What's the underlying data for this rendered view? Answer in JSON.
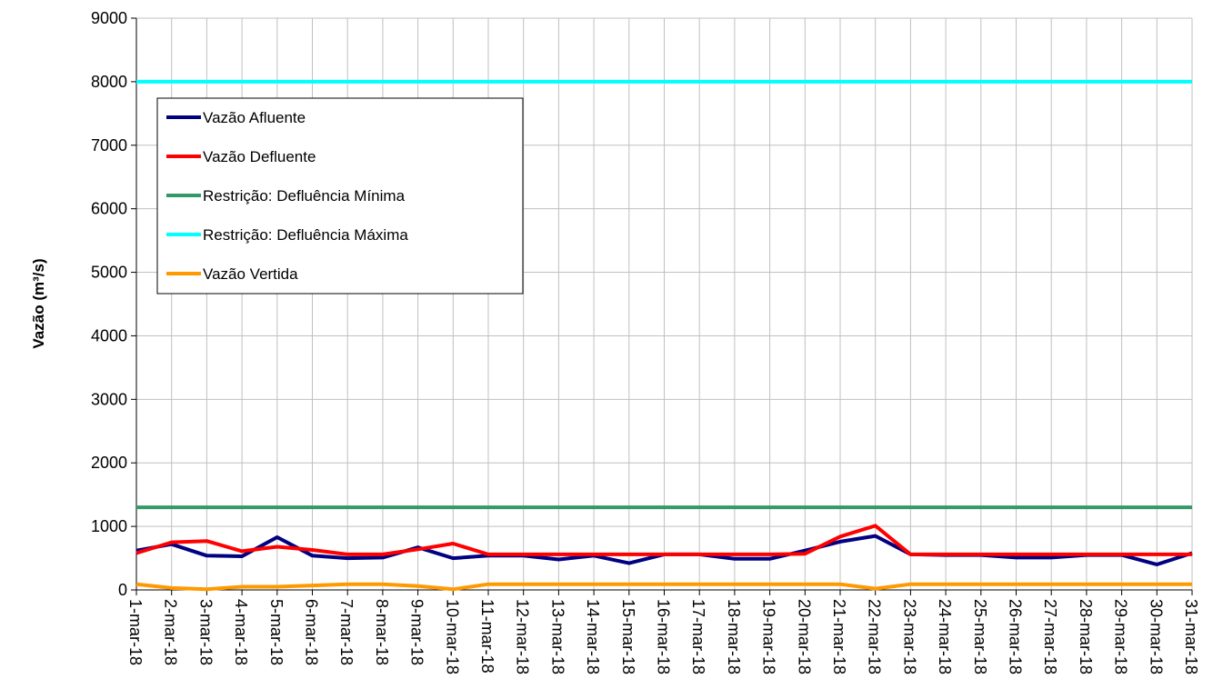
{
  "chart_data": {
    "type": "line",
    "title": "",
    "xlabel": "",
    "ylabel": "Vazão (m³/s)",
    "ylim": [
      0,
      9000
    ],
    "yticks": [
      0,
      1000,
      2000,
      3000,
      4000,
      5000,
      6000,
      7000,
      8000,
      9000
    ],
    "grid": true,
    "legend_position": "top-left",
    "categories": [
      "1-mar-18",
      "2-mar-18",
      "3-mar-18",
      "4-mar-18",
      "5-mar-18",
      "6-mar-18",
      "7-mar-18",
      "8-mar-18",
      "9-mar-18",
      "10-mar-18",
      "11-mar-18",
      "12-mar-18",
      "13-mar-18",
      "14-mar-18",
      "15-mar-18",
      "16-mar-18",
      "17-mar-18",
      "18-mar-18",
      "19-mar-18",
      "20-mar-18",
      "21-mar-18",
      "22-mar-18",
      "23-mar-18",
      "24-mar-18",
      "25-mar-18",
      "26-mar-18",
      "27-mar-18",
      "28-mar-18",
      "29-mar-18",
      "30-mar-18",
      "31-mar-18"
    ],
    "series": [
      {
        "name": "Vazão Afluente",
        "color": "#000080",
        "values": [
          620,
          720,
          540,
          530,
          830,
          540,
          500,
          510,
          670,
          500,
          540,
          540,
          480,
          540,
          420,
          560,
          560,
          490,
          490,
          620,
          760,
          850,
          560,
          550,
          550,
          510,
          510,
          550,
          550,
          400,
          580
        ]
      },
      {
        "name": "Vazão Defluente",
        "color": "#ff0000",
        "values": [
          580,
          750,
          770,
          610,
          680,
          630,
          560,
          560,
          640,
          730,
          560,
          560,
          560,
          560,
          560,
          560,
          560,
          560,
          560,
          570,
          840,
          1010,
          560,
          560,
          560,
          560,
          560,
          560,
          560,
          560,
          560
        ]
      },
      {
        "name": "Restrição: Defluência Mínima",
        "color": "#339966",
        "values": [
          1300,
          1300,
          1300,
          1300,
          1300,
          1300,
          1300,
          1300,
          1300,
          1300,
          1300,
          1300,
          1300,
          1300,
          1300,
          1300,
          1300,
          1300,
          1300,
          1300,
          1300,
          1300,
          1300,
          1300,
          1300,
          1300,
          1300,
          1300,
          1300,
          1300,
          1300
        ]
      },
      {
        "name": "Restrição: Defluência Máxima",
        "color": "#00ffff",
        "values": [
          8000,
          8000,
          8000,
          8000,
          8000,
          8000,
          8000,
          8000,
          8000,
          8000,
          8000,
          8000,
          8000,
          8000,
          8000,
          8000,
          8000,
          8000,
          8000,
          8000,
          8000,
          8000,
          8000,
          8000,
          8000,
          8000,
          8000,
          8000,
          8000,
          8000,
          8000
        ]
      },
      {
        "name": "Vazão Vertida",
        "color": "#ff9900",
        "values": [
          90,
          30,
          10,
          50,
          50,
          70,
          90,
          90,
          60,
          10,
          90,
          90,
          90,
          90,
          90,
          90,
          90,
          90,
          90,
          90,
          90,
          20,
          90,
          90,
          90,
          90,
          90,
          90,
          90,
          90,
          90
        ]
      }
    ]
  }
}
